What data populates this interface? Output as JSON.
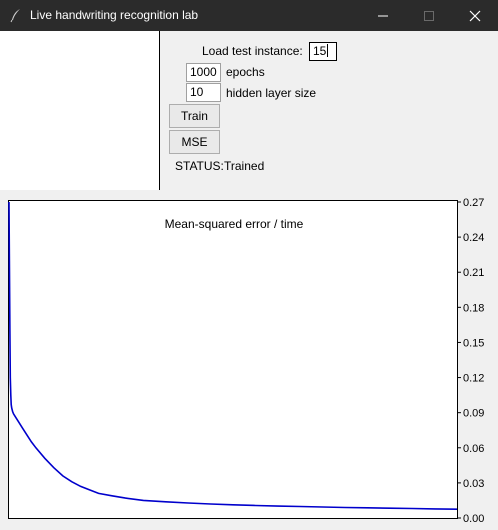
{
  "window": {
    "title": "Live handwriting recognition lab",
    "icon": "feather-icon"
  },
  "controls": {
    "test_instance_label": "Load test instance:",
    "test_instance_value": "15",
    "epochs_value": "1000",
    "epochs_label": "epochs",
    "hidden_value": "10",
    "hidden_label": "hidden layer size",
    "train_button": "Train",
    "mse_button": "MSE",
    "status_label": "STATUS:",
    "status_value": "Trained"
  },
  "chart_data": {
    "type": "line",
    "title": "Mean-squared error / time",
    "ylim": [
      0,
      0.27
    ],
    "yticks": [
      0.27,
      0.24,
      0.21,
      0.18,
      0.15,
      0.12,
      0.09,
      0.06,
      0.03,
      0.0
    ],
    "ytick_labels": [
      "0.27",
      "0.24",
      "0.21",
      "0.18",
      "0.15",
      "0.12",
      "0.09",
      "0.06",
      "0.03",
      "0.00"
    ],
    "xlim": [
      0,
      1000
    ],
    "line_color": "#0000cc",
    "series": [
      {
        "x": [
          0,
          1,
          2,
          3,
          4,
          5,
          6,
          8,
          10,
          15,
          20,
          30,
          40,
          50,
          60,
          80,
          100,
          120,
          140,
          160,
          180,
          200,
          230,
          260,
          300,
          350,
          400,
          450,
          500,
          550,
          600,
          650,
          700,
          750,
          800,
          850,
          900,
          950,
          1000
        ],
        "values": [
          0.27,
          0.22,
          0.16,
          0.12,
          0.105,
          0.097,
          0.094,
          0.091,
          0.089,
          0.086,
          0.083,
          0.077,
          0.071,
          0.065,
          0.06,
          0.051,
          0.043,
          0.036,
          0.031,
          0.027,
          0.024,
          0.021,
          0.019,
          0.017,
          0.015,
          0.0138,
          0.0128,
          0.012,
          0.0113,
          0.0107,
          0.0102,
          0.0098,
          0.0094,
          0.009,
          0.0087,
          0.0084,
          0.0081,
          0.0078,
          0.0075
        ]
      }
    ]
  }
}
